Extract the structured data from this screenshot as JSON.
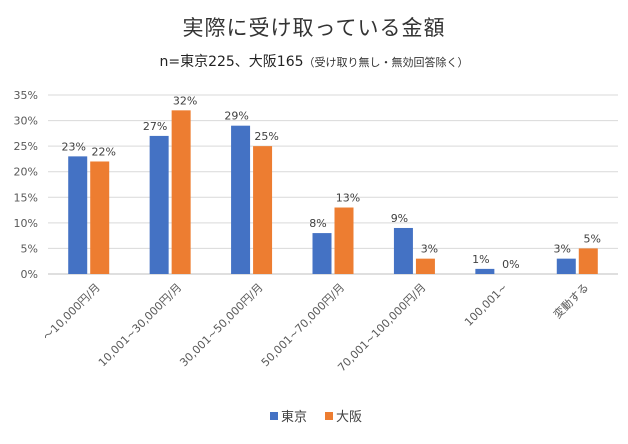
{
  "chart_data": {
    "type": "bar",
    "title": "実際に受け取っている金額",
    "subtitle": "n=東京225、大阪165",
    "subtitle_note": "（受け取り無し・無効回答除く）",
    "categories": [
      "～10,000円/月",
      "10,001~30,000円/月",
      "30,001~50,000円/月",
      "50,001~70,000円/月",
      "70,001~100,000円/月",
      "100,001~",
      "変動する"
    ],
    "series": [
      {
        "name": "東京",
        "color": "#4472C4",
        "values": [
          23,
          27,
          29,
          8,
          9,
          1,
          3
        ],
        "labels": [
          "23%",
          "27%",
          "29%",
          "8%",
          "9%",
          "1%",
          "3%"
        ]
      },
      {
        "name": "大阪",
        "color": "#ED7D31",
        "values": [
          22,
          32,
          25,
          13,
          3,
          0,
          5
        ],
        "labels": [
          "22%",
          "32%",
          "25%",
          "13%",
          "3%",
          "0%",
          "5%"
        ]
      }
    ],
    "y_ticks": [
      "0%",
      "5%",
      "10%",
      "15%",
      "20%",
      "25%",
      "30%",
      "35%"
    ],
    "ylim": [
      0,
      35
    ],
    "grid": true,
    "legend_position": "bottom"
  }
}
